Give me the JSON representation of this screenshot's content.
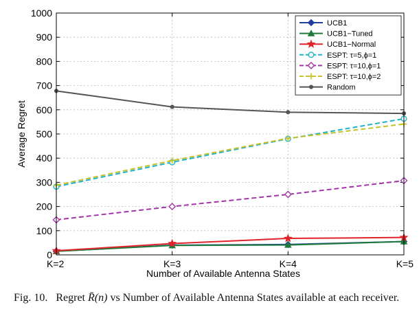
{
  "chart_data": {
    "type": "line",
    "categories": [
      "K=2",
      "K=3",
      "K=4",
      "K=5"
    ],
    "xlabel": "Number of Available Antenna States",
    "ylabel": "Average Regret",
    "ylim": [
      0,
      1000
    ],
    "yticks": [
      0,
      100,
      200,
      300,
      400,
      500,
      600,
      700,
      800,
      900,
      1000
    ],
    "grid": true,
    "legend_position": "top-right",
    "series": [
      {
        "name": "UCB1",
        "values": [
          15,
          40,
          43,
          55
        ],
        "color": "#1f3f9e",
        "marker": "diamond",
        "dash": "solid"
      },
      {
        "name": "UCB1−Tuned",
        "values": [
          15,
          39,
          41,
          55
        ],
        "color": "#1e7b3c",
        "marker": "triangle",
        "dash": "solid"
      },
      {
        "name": "UCB1−Normal",
        "values": [
          17,
          47,
          68,
          72
        ],
        "color": "#e0242a",
        "marker": "star",
        "dash": "solid"
      },
      {
        "name": "ESPT: τ=5,ϕ=1",
        "values": [
          282,
          383,
          480,
          563
        ],
        "color": "#1fb3c9",
        "marker": "circle",
        "dash": "dashed"
      },
      {
        "name": "ESPT: τ=10,ϕ=1",
        "values": [
          145,
          200,
          250,
          307
        ],
        "color": "#a334a8",
        "marker": "diamond-open",
        "dash": "dashed"
      },
      {
        "name": "ESPT: τ=10,ϕ=2",
        "values": [
          288,
          390,
          482,
          541
        ],
        "color": "#c6c126",
        "marker": "plus",
        "dash": "dashed"
      },
      {
        "name": "Random",
        "values": [
          678,
          612,
          590,
          585
        ],
        "color": "#555555",
        "marker": "dot",
        "dash": "solid"
      }
    ]
  },
  "caption": {
    "fig_label": "Fig. 10.",
    "text_before": "Regret ",
    "math": "R̄(n)",
    "text_after": " vs Number of Available Antenna States available at each receiver."
  }
}
